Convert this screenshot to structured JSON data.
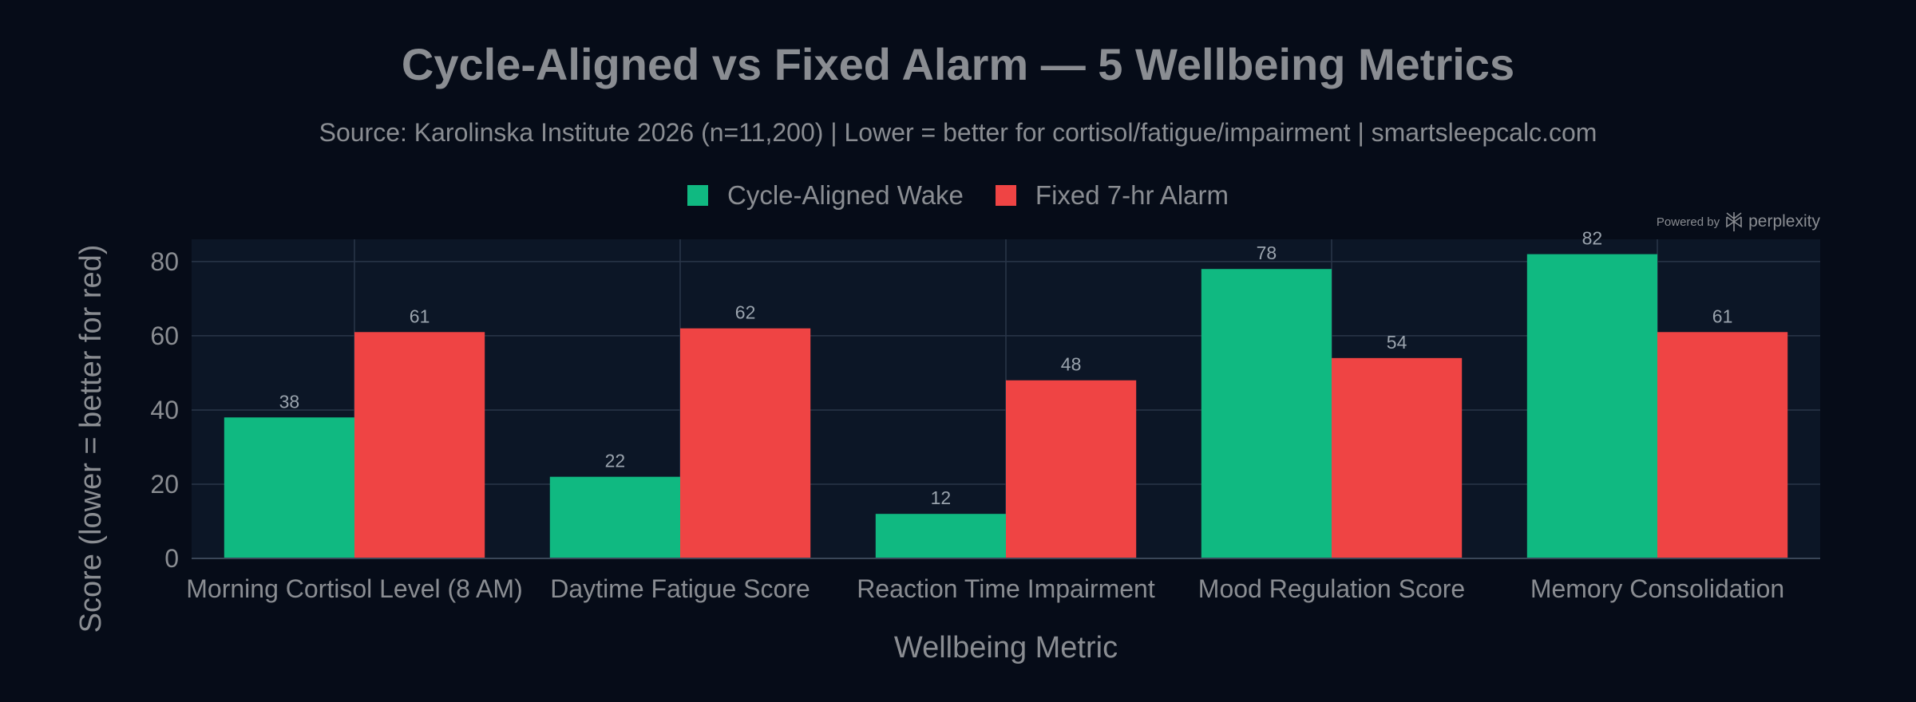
{
  "title": "Cycle-Aligned vs Fixed Alarm — 5 Wellbeing Metrics",
  "subtitle": "Source: Karolinska Institute 2026 (n=11,200) | Lower = better for cortisol/fatigue/impairment | smartsleepcalc.com",
  "watermark": {
    "prefix": "Powered by",
    "brand": "perplexity",
    "icon": "perplexity-logo-icon"
  },
  "colors": {
    "background": "#060c18",
    "plot_background": "#0c1626",
    "grid": "#2a3648",
    "text": "#8a8d92",
    "cycle_aligned": "#10b981",
    "fixed_alarm": "#ef4444"
  },
  "chart_data": {
    "type": "bar",
    "title": "Cycle-Aligned vs Fixed Alarm — 5 Wellbeing Metrics",
    "subtitle": "Source: Karolinska Institute 2026 (n=11,200) | Lower = better for cortisol/fatigue/impairment | smartsleepcalc.com",
    "xlabel": "Wellbeing Metric",
    "ylabel": "Score (lower = better for red)",
    "ylim": [
      0,
      86
    ],
    "yticks": [
      0,
      20,
      40,
      60,
      80
    ],
    "grid": true,
    "legend_position": "top-center",
    "categories": [
      "Morning Cortisol Level (8 AM)",
      "Daytime Fatigue Score",
      "Reaction Time Impairment",
      "Mood Regulation Score",
      "Memory Consolidation"
    ],
    "series": [
      {
        "name": "Cycle-Aligned Wake",
        "color": "#10b981",
        "values": [
          38,
          22,
          12,
          78,
          82
        ]
      },
      {
        "name": "Fixed 7-hr Alarm",
        "color": "#ef4444",
        "values": [
          61,
          62,
          48,
          54,
          61
        ]
      }
    ]
  }
}
